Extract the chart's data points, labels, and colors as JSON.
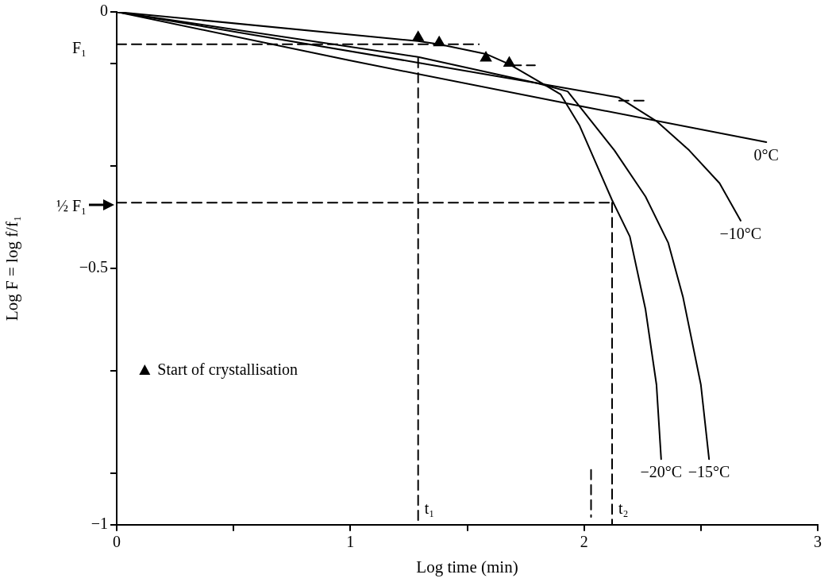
{
  "chart_data": {
    "type": "line",
    "xlabel": "Log time (min)",
    "ylabel": "Log F = log f/f₁",
    "xlim": [
      0,
      3
    ],
    "ylim": [
      -1,
      0
    ],
    "xticks": [
      0,
      {
        "value": 0.5,
        "label": null
      },
      1,
      {
        "value": 1.5,
        "label": null
      },
      2,
      {
        "value": 2.5,
        "label": null
      },
      3
    ],
    "yticks": [
      0,
      {
        "value": -0.1,
        "label": null
      },
      {
        "value": -0.3,
        "label": null
      },
      {
        "value": -0.5,
        "label": "−0.5"
      },
      {
        "value": -0.7,
        "label": null
      },
      {
        "value": -0.9,
        "label": null
      },
      {
        "value": -1,
        "label": "−1"
      }
    ],
    "grid": false,
    "legend": "bottom left",
    "series": [
      {
        "name": "0°C",
        "color": "#000000",
        "marker": "none",
        "line_style": "solid",
        "x": [
          0,
          1,
          2,
          2.78
        ],
        "values": [
          0,
          -0.095,
          -0.185,
          -0.254
        ]
      },
      {
        "name": "−10°C",
        "color": "#000000",
        "marker": "none",
        "line_style": "solid",
        "x": [
          0,
          1.29,
          1.8,
          2.15,
          2.31,
          2.45,
          2.58,
          2.67
        ],
        "values": [
          0,
          -0.099,
          -0.139,
          -0.167,
          -0.213,
          -0.27,
          -0.334,
          -0.407
        ]
      },
      {
        "name": "−15°C",
        "color": "#000000",
        "marker": "none",
        "line_style": "solid",
        "x": [
          0,
          1.29,
          1.8,
          1.93,
          2.13,
          2.263,
          2.36,
          2.423,
          2.5,
          2.535
        ],
        "values": [
          0,
          -0.088,
          -0.139,
          -0.155,
          -0.27,
          -0.36,
          -0.45,
          -0.555,
          -0.727,
          -0.872
        ]
      },
      {
        "name": "−20°C",
        "color": "#000000",
        "marker": "none",
        "line_style": "solid",
        "x": [
          0,
          1.29,
          1.38,
          1.58,
          1.68,
          1.82,
          1.9,
          1.98,
          2.12,
          2.196,
          2.263,
          2.31,
          2.33
        ],
        "values": [
          0,
          -0.057,
          -0.063,
          -0.082,
          -0.102,
          -0.139,
          -0.161,
          -0.221,
          -0.367,
          -0.438,
          -0.58,
          -0.727,
          -0.872
        ]
      },
      {
        "type": "line",
        "color": "#000000",
        "marker": "none",
        "line_style": "dashed",
        "x": [
          0,
          1.55
        ],
        "values": [
          -0.063,
          -0.063
        ]
      },
      {
        "type": "line",
        "color": "#000000",
        "marker": "none",
        "line_style": "dashed",
        "x": [
          1.69,
          1.79
        ],
        "values": [
          -0.104,
          -0.104
        ]
      },
      {
        "type": "line",
        "color": "#000000",
        "marker": "none",
        "line_style": "dashed",
        "x": [
          2.15,
          2.27
        ],
        "values": [
          -0.173,
          -0.173
        ]
      },
      {
        "type": "line",
        "color": "#000000",
        "marker": "none",
        "line_style": "dashed",
        "x": [
          0,
          2.12
        ],
        "values": [
          -0.372,
          -0.372
        ]
      },
      {
        "type": "line",
        "color": "#000000",
        "marker": "none",
        "line_style": "dashed",
        "x": [
          1.29,
          1.29
        ],
        "values": [
          -0.09,
          -1
        ]
      },
      {
        "type": "line",
        "color": "#000000",
        "marker": "none",
        "line_style": "dashed",
        "x": [
          2.12,
          2.12
        ],
        "values": [
          -0.372,
          -1
        ]
      },
      {
        "type": "line",
        "color": "#000000",
        "marker": "none",
        "line_style": "dashed",
        "x": [
          2.03,
          2.03
        ],
        "values": [
          -0.893,
          -0.985
        ]
      },
      {
        "type": "scatter",
        "name": "Start of crystallisation",
        "color": "#000000",
        "marker": "triangle",
        "x": [
          1.29,
          1.38,
          1.58,
          1.68
        ],
        "values": [
          -0.05,
          -0.06,
          -0.09,
          -0.1
        ]
      }
    ],
    "annotations": [
      {
        "text": "F₁",
        "x": 0,
        "y": -0.063
      },
      {
        "text": "½ F₁",
        "x": 0,
        "y": -0.372
      },
      {
        "text": "t₁",
        "x": 1.29,
        "y": -0.97
      },
      {
        "text": "t₂",
        "x": 2.12,
        "y": -0.97
      }
    ]
  }
}
